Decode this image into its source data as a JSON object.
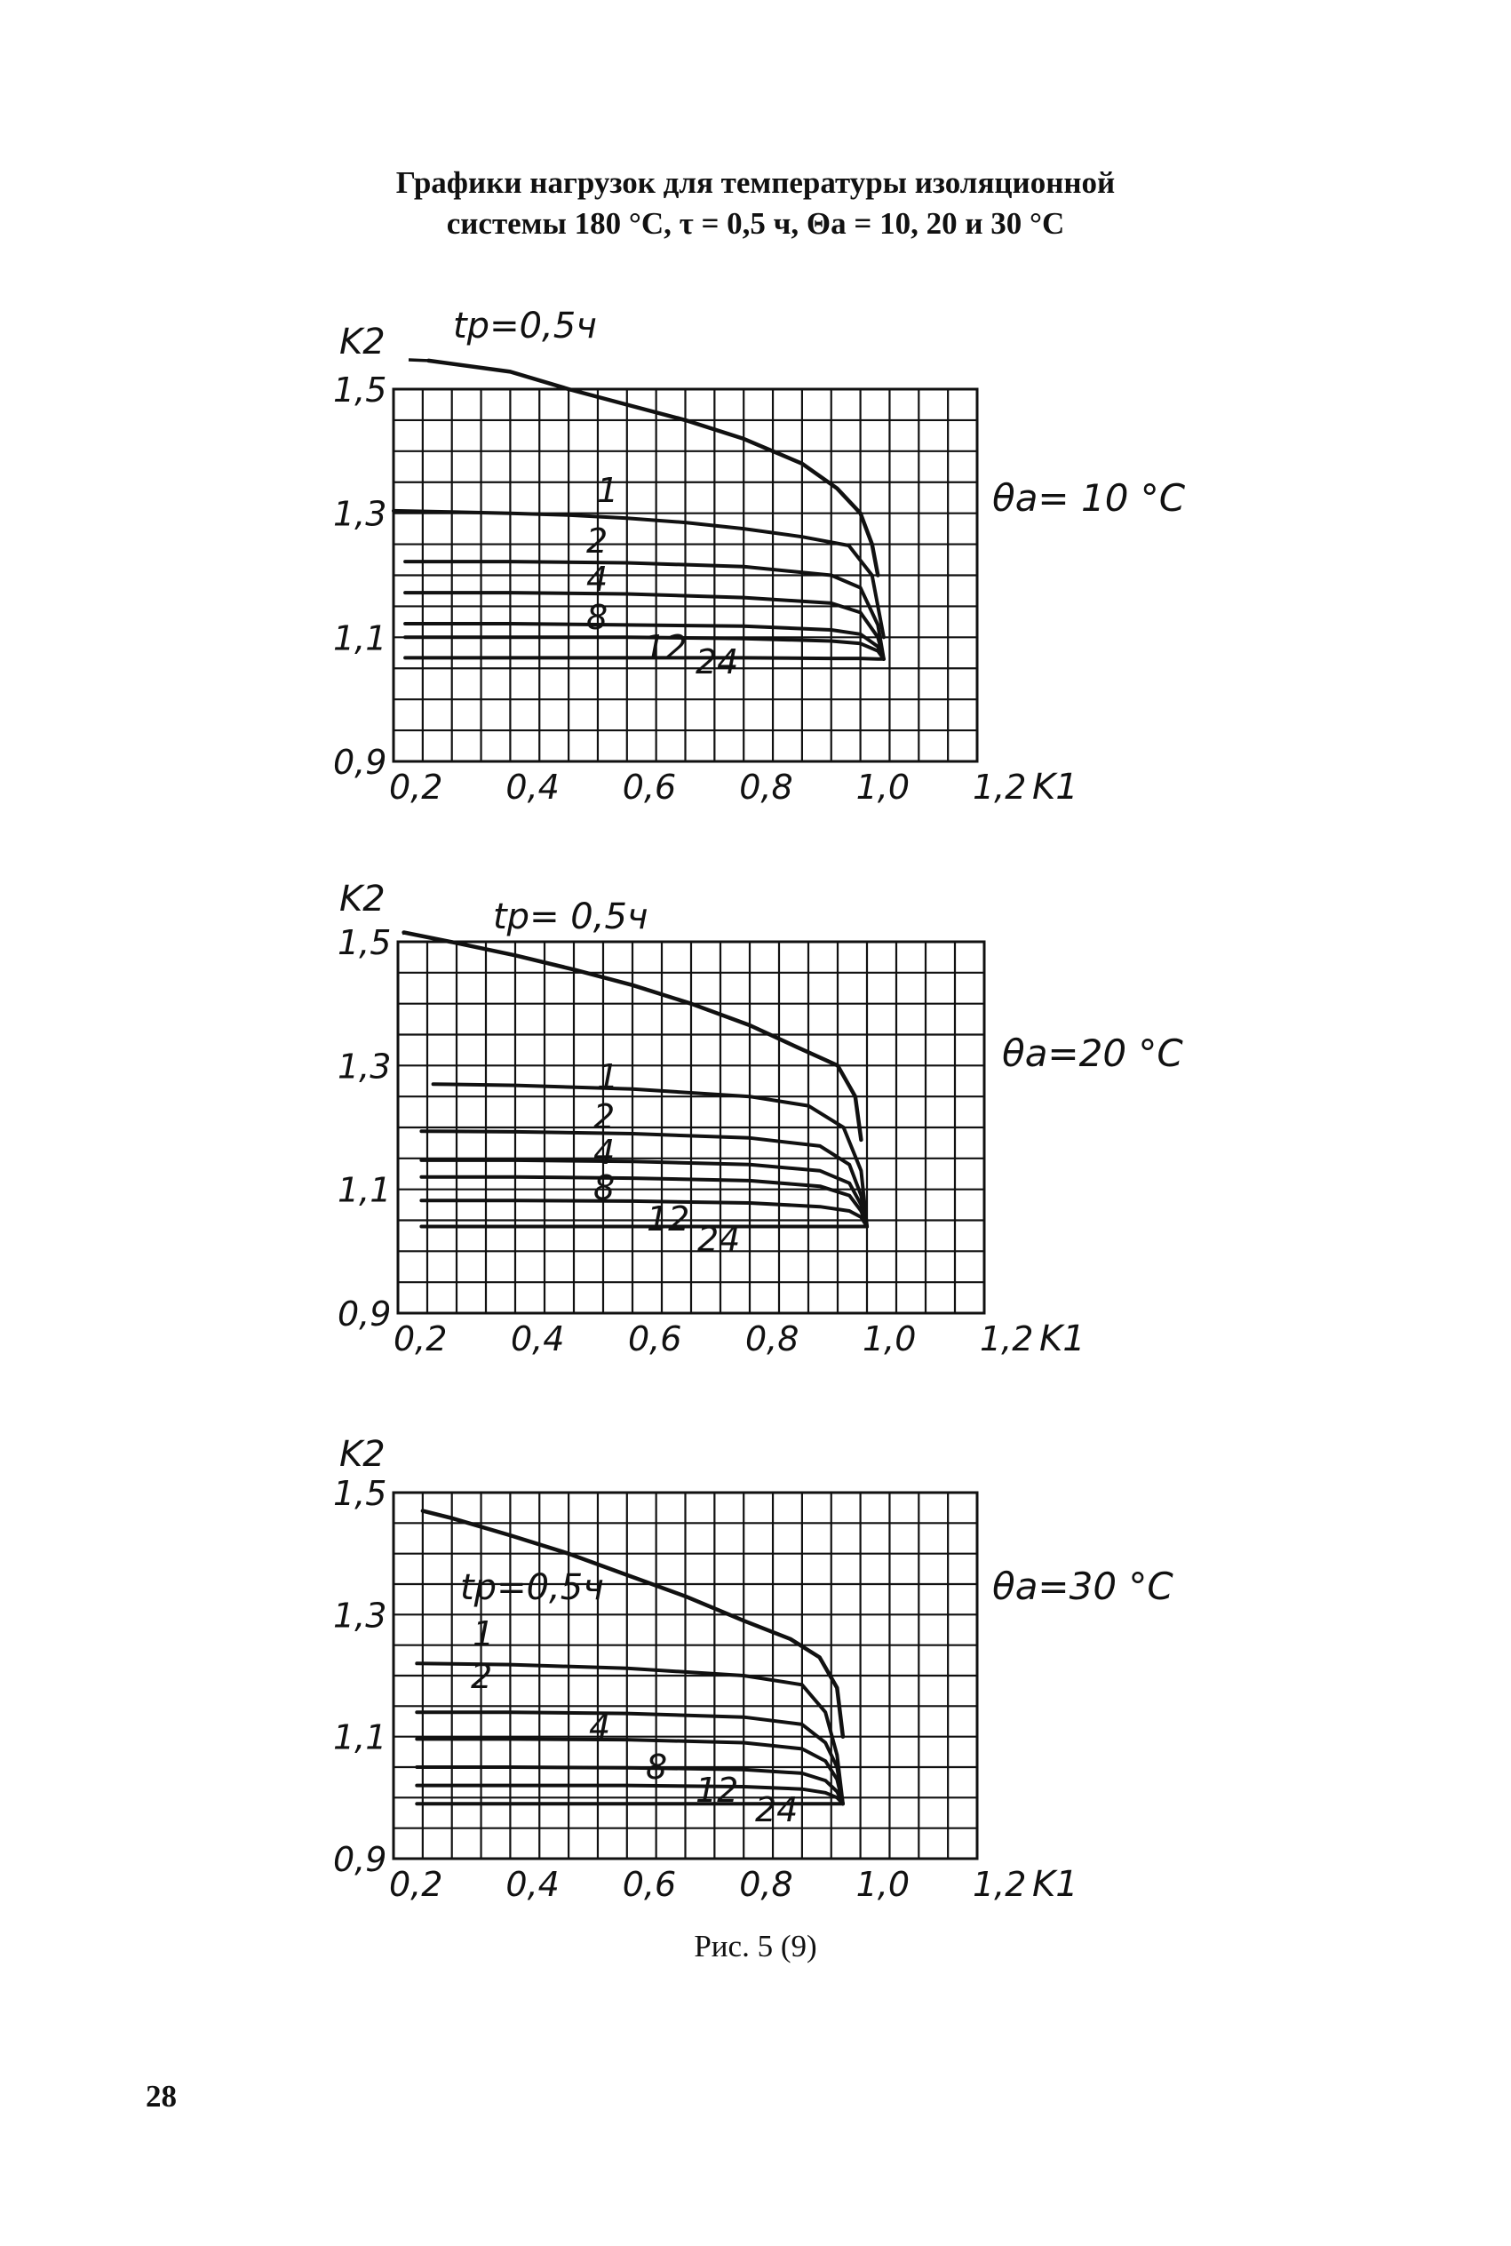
{
  "page": {
    "title_line1": "Графики нагрузок для температуры изоляционной",
    "title_line2": "системы 180 °С, τ = 0,5 ч, Θа = 10, 20 и 30 °С",
    "caption": "Рис. 5 (9)",
    "page_number": "28"
  },
  "chart_data": [
    {
      "type": "line",
      "theta_label": "θa= 10 °C",
      "tp_label": "tp=0,5ч",
      "ylabel": "K2",
      "xlabel": "K1",
      "xlim": [
        0.2,
        1.2
      ],
      "ylim": [
        0.9,
        1.5
      ],
      "x_ticks": [
        "0,2",
        "0,4",
        "0,6",
        "0,8",
        "1,0",
        "1,2"
      ],
      "y_ticks": [
        "1,5",
        "1,3",
        "1,1",
        "0,9"
      ],
      "grid": true,
      "x_end": 1.04,
      "series": [
        {
          "name": "tp=0,5ч",
          "x": [
            0.26,
            0.4,
            0.5,
            0.6,
            0.7,
            0.8,
            0.9,
            0.96,
            1.0,
            1.02,
            1.03
          ],
          "y": [
            1.546,
            1.528,
            1.5,
            1.475,
            1.45,
            1.42,
            1.38,
            1.34,
            1.3,
            1.25,
            1.2
          ],
          "dashed_to": 0.5
        },
        {
          "name": "1",
          "x": [
            0.2,
            0.3,
            0.4,
            0.5,
            0.6,
            0.7,
            0.8,
            0.9,
            0.98,
            1.02,
            1.04
          ],
          "y": [
            1.304,
            1.302,
            1.3,
            1.297,
            1.292,
            1.285,
            1.275,
            1.262,
            1.248,
            1.2,
            1.1
          ]
        },
        {
          "name": "2",
          "x": [
            0.22,
            0.4,
            0.6,
            0.8,
            0.95,
            1.0,
            1.03,
            1.04
          ],
          "y": [
            1.222,
            1.222,
            1.22,
            1.214,
            1.2,
            1.18,
            1.12,
            1.065
          ]
        },
        {
          "name": "4",
          "x": [
            0.22,
            0.4,
            0.6,
            0.8,
            0.95,
            1.0,
            1.03,
            1.04
          ],
          "y": [
            1.172,
            1.172,
            1.17,
            1.164,
            1.155,
            1.14,
            1.1,
            1.065
          ]
        },
        {
          "name": "8",
          "x": [
            0.22,
            0.4,
            0.6,
            0.8,
            0.95,
            1.0,
            1.03,
            1.04
          ],
          "y": [
            1.122,
            1.122,
            1.12,
            1.118,
            1.112,
            1.105,
            1.085,
            1.065
          ]
        },
        {
          "name": "12",
          "x": [
            0.22,
            0.4,
            0.6,
            0.8,
            0.95,
            1.0,
            1.03,
            1.04
          ],
          "y": [
            1.1,
            1.1,
            1.1,
            1.098,
            1.094,
            1.09,
            1.078,
            1.065
          ]
        },
        {
          "name": "24",
          "x": [
            0.22,
            0.4,
            0.6,
            0.8,
            0.95,
            1.0,
            1.03,
            1.04
          ],
          "y": [
            1.067,
            1.067,
            1.067,
            1.067,
            1.066,
            1.066,
            1.065,
            1.065
          ]
        }
      ]
    },
    {
      "type": "line",
      "theta_label": "θa=20 °C",
      "tp_label": "tp= 0,5ч",
      "ylabel": "K2",
      "xlabel": "K1",
      "xlim": [
        0.2,
        1.2
      ],
      "ylim": [
        0.9,
        1.5
      ],
      "x_ticks": [
        "0,2",
        "0,4",
        "0,6",
        "0,8",
        "1,0",
        "1,2"
      ],
      "y_ticks": [
        "1,5",
        "1,3",
        "1,1",
        "0,9"
      ],
      "grid": true,
      "x_end": 1.0,
      "series": [
        {
          "name": "tp=0,5ч",
          "x": [
            0.21,
            0.3,
            0.4,
            0.5,
            0.6,
            0.7,
            0.8,
            0.88,
            0.95,
            0.98,
            0.99
          ],
          "y": [
            1.515,
            1.498,
            1.478,
            1.455,
            1.43,
            1.4,
            1.365,
            1.33,
            1.3,
            1.25,
            1.18
          ],
          "dashed_to": 0.22
        },
        {
          "name": "1",
          "x": [
            0.26,
            0.4,
            0.6,
            0.8,
            0.9,
            0.96,
            0.99,
            1.0
          ],
          "y": [
            1.27,
            1.268,
            1.262,
            1.25,
            1.235,
            1.2,
            1.13,
            1.04
          ]
        },
        {
          "name": "2",
          "x": [
            0.24,
            0.4,
            0.6,
            0.8,
            0.92,
            0.97,
            0.99,
            1.0
          ],
          "y": [
            1.194,
            1.193,
            1.19,
            1.183,
            1.17,
            1.14,
            1.09,
            1.04
          ]
        },
        {
          "name": "4",
          "x": [
            0.24,
            0.4,
            0.6,
            0.8,
            0.92,
            0.97,
            0.99,
            1.0
          ],
          "y": [
            1.147,
            1.147,
            1.145,
            1.14,
            1.13,
            1.11,
            1.075,
            1.04
          ]
        },
        {
          "name": "8",
          "x": [
            0.24,
            0.4,
            0.6,
            0.8,
            0.92,
            0.97,
            0.99,
            1.0
          ],
          "y": [
            1.12,
            1.12,
            1.118,
            1.114,
            1.105,
            1.09,
            1.065,
            1.04
          ]
        },
        {
          "name": "12",
          "x": [
            0.24,
            0.4,
            0.6,
            0.8,
            0.92,
            0.97,
            0.99,
            1.0
          ],
          "y": [
            1.082,
            1.082,
            1.081,
            1.078,
            1.072,
            1.065,
            1.055,
            1.04
          ]
        },
        {
          "name": "24",
          "x": [
            0.24,
            0.4,
            0.6,
            0.8,
            0.92,
            0.97,
            0.99,
            1.0
          ],
          "y": [
            1.04,
            1.04,
            1.04,
            1.04,
            1.04,
            1.04,
            1.04,
            1.04
          ]
        }
      ]
    },
    {
      "type": "line",
      "theta_label": "θa=30 °C",
      "tp_label": "tp=0,5ч",
      "ylabel": "K2",
      "xlabel": "K1",
      "xlim": [
        0.2,
        1.2
      ],
      "ylim": [
        0.9,
        1.5
      ],
      "x_ticks": [
        "0,2",
        "0,4",
        "0,6",
        "0,8",
        "1,0",
        "1,2"
      ],
      "y_ticks": [
        "1,5",
        "1,3",
        "1,1",
        "0,9"
      ],
      "grid": true,
      "x_end": 0.97,
      "series": [
        {
          "name": "tp=0,5ч",
          "x": [
            0.25,
            0.3,
            0.4,
            0.5,
            0.6,
            0.7,
            0.8,
            0.88,
            0.93,
            0.96,
            0.97
          ],
          "y": [
            1.47,
            1.458,
            1.43,
            1.4,
            1.365,
            1.33,
            1.29,
            1.26,
            1.23,
            1.18,
            1.1
          ]
        },
        {
          "name": "1",
          "x": [
            0.24,
            0.4,
            0.6,
            0.8,
            0.9,
            0.94,
            0.96,
            0.97
          ],
          "y": [
            1.22,
            1.218,
            1.212,
            1.2,
            1.185,
            1.14,
            1.07,
            0.99
          ]
        },
        {
          "name": "2",
          "x": [
            0.24,
            0.4,
            0.6,
            0.8,
            0.9,
            0.94,
            0.96,
            0.97
          ],
          "y": [
            1.14,
            1.14,
            1.138,
            1.132,
            1.12,
            1.09,
            1.05,
            0.99
          ]
        },
        {
          "name": "4",
          "x": [
            0.24,
            0.4,
            0.6,
            0.8,
            0.9,
            0.94,
            0.96,
            0.97
          ],
          "y": [
            1.096,
            1.096,
            1.095,
            1.09,
            1.08,
            1.06,
            1.03,
            0.99
          ]
        },
        {
          "name": "8",
          "x": [
            0.24,
            0.4,
            0.6,
            0.8,
            0.9,
            0.94,
            0.96,
            0.97
          ],
          "y": [
            1.05,
            1.05,
            1.049,
            1.046,
            1.04,
            1.028,
            1.01,
            0.99
          ]
        },
        {
          "name": "12",
          "x": [
            0.24,
            0.4,
            0.6,
            0.8,
            0.9,
            0.94,
            0.96,
            0.97
          ],
          "y": [
            1.02,
            1.02,
            1.02,
            1.018,
            1.014,
            1.008,
            1.0,
            0.99
          ]
        },
        {
          "name": "24",
          "x": [
            0.24,
            0.4,
            0.6,
            0.8,
            0.9,
            0.94,
            0.96,
            0.97
          ],
          "y": [
            0.99,
            0.99,
            0.99,
            0.99,
            0.99,
            0.99,
            0.99,
            0.99
          ]
        }
      ]
    }
  ]
}
